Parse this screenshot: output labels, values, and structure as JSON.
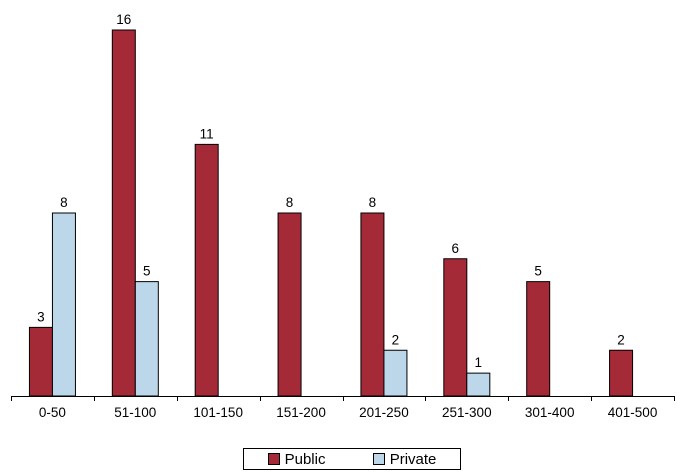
{
  "chart_data": {
    "type": "bar",
    "categories": [
      "0-50",
      "51-100",
      "101-150",
      "151-200",
      "201-250",
      "251-300",
      "301-400",
      "401-500"
    ],
    "series": [
      {
        "name": "Public",
        "color": "#A52A38",
        "values": [
          3,
          16,
          11,
          8,
          8,
          6,
          5,
          2
        ]
      },
      {
        "name": "Private",
        "color": "#BDD7EA",
        "values": [
          8,
          5,
          null,
          null,
          2,
          1,
          null,
          null
        ]
      }
    ],
    "ylim": [
      0,
      16
    ],
    "grid": false,
    "legend_position": "bottom-center",
    "data_labels": true
  }
}
